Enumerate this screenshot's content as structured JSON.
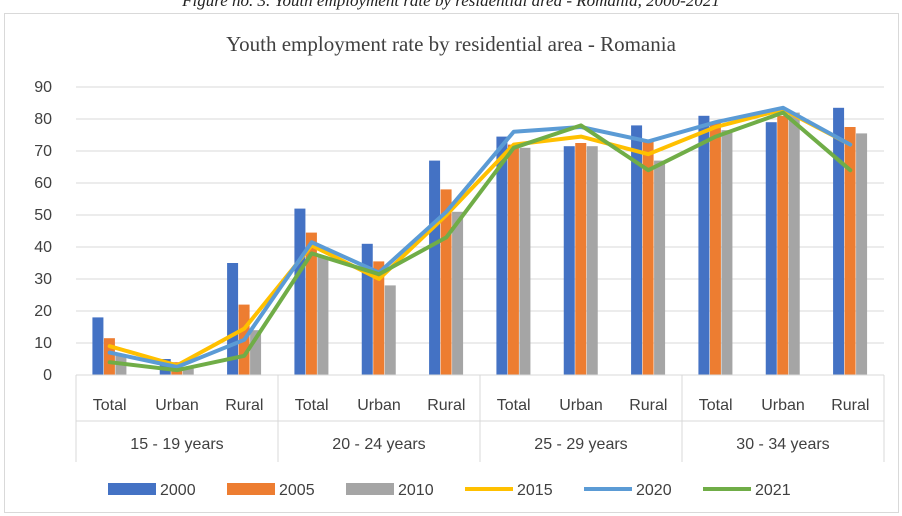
{
  "caption": "Figure no. 3. Youth employment rate by residential area - Romania, 2000-2021",
  "chart_data": {
    "type": "bar",
    "title": "Youth employment rate by residential area - Romania",
    "ylim": [
      0,
      90
    ],
    "yticks": [
      "0",
      "10",
      "20",
      "30",
      "40",
      "50",
      "60",
      "70",
      "80",
      "90"
    ],
    "categories": [
      "Total",
      "Urban",
      "Rural",
      "Total",
      "Urban",
      "Rural",
      "Total",
      "Urban",
      "Rural",
      "Total",
      "Urban",
      "Rural"
    ],
    "groups": [
      "15 - 19 years",
      "20 - 24 years",
      "25 - 29 years",
      "30 - 34 years"
    ],
    "grid": true,
    "legend_position": "bottom",
    "series": [
      {
        "name": "2000",
        "kind": "bar",
        "color": "#4472c4",
        "values": [
          18,
          5,
          35,
          52,
          41,
          67,
          74.5,
          71.5,
          78,
          81,
          79,
          83.5
        ]
      },
      {
        "name": "2005",
        "kind": "bar",
        "color": "#ed7d31",
        "values": [
          11.5,
          4,
          22,
          44.5,
          35.5,
          58,
          72,
          72.5,
          73,
          79,
          81,
          77.5
        ]
      },
      {
        "name": "2010",
        "kind": "bar",
        "color": "#a5a5a5",
        "values": [
          6,
          2,
          14,
          37,
          28,
          51,
          71,
          71.5,
          67,
          76.5,
          82,
          75.5
        ]
      },
      {
        "name": "2015",
        "kind": "line",
        "color": "#ffc000",
        "values": [
          9,
          3,
          14.5,
          40.5,
          30,
          50,
          72,
          74.5,
          69,
          77.5,
          83,
          72
        ]
      },
      {
        "name": "2020",
        "kind": "line",
        "color": "#5b9bd5",
        "values": [
          7,
          2.5,
          11,
          41.5,
          32,
          51,
          76,
          77.5,
          73,
          79,
          83.5,
          72
        ]
      },
      {
        "name": "2021",
        "kind": "line",
        "color": "#70ad47",
        "values": [
          4,
          1.5,
          6,
          38,
          31.5,
          43,
          71,
          78,
          64,
          74.5,
          82,
          64
        ]
      }
    ]
  }
}
